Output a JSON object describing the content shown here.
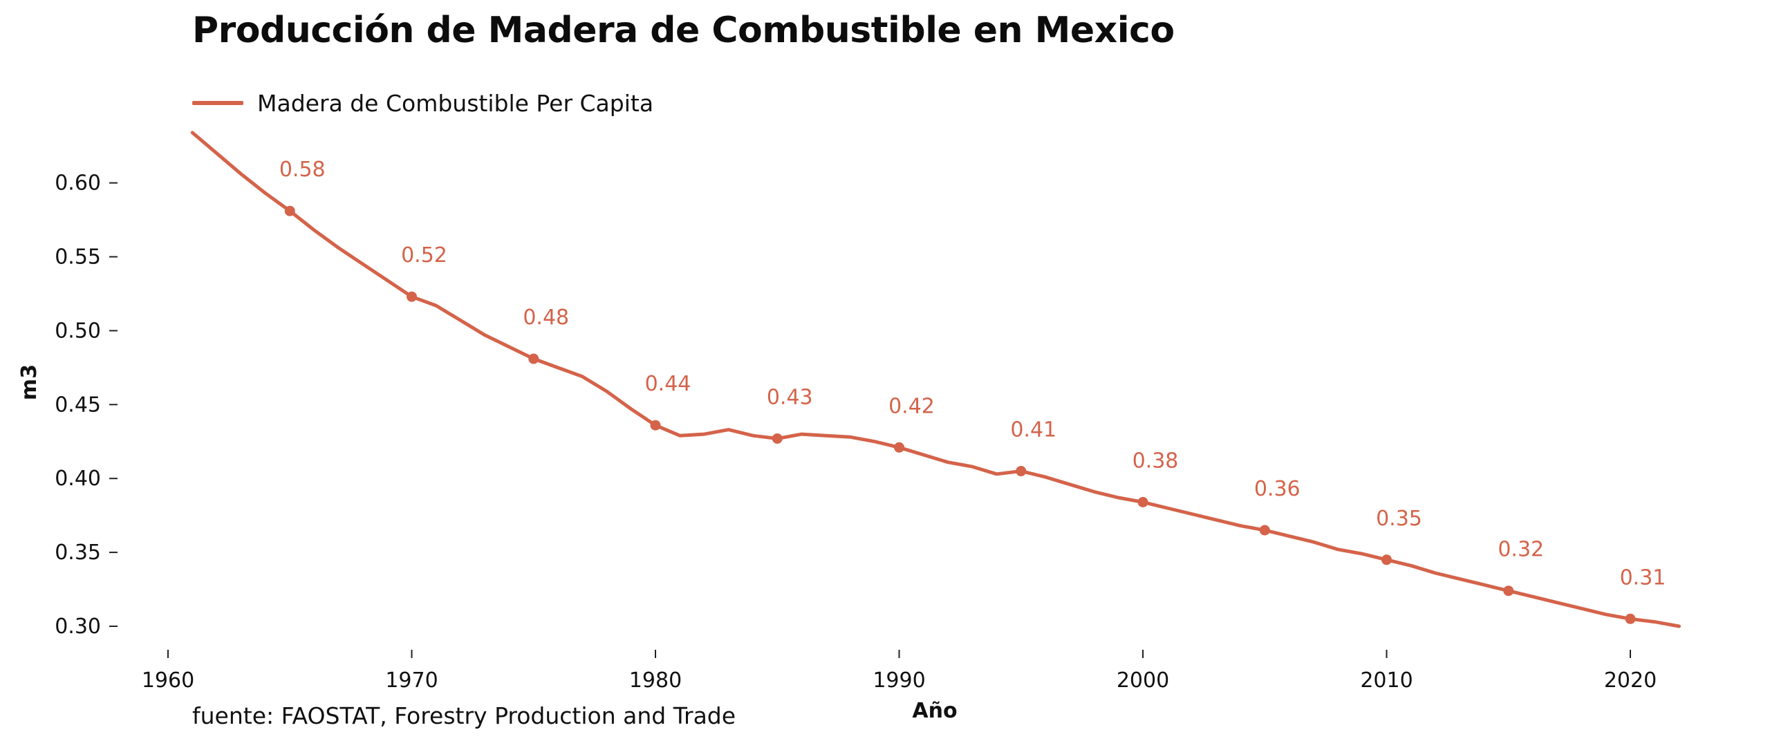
{
  "chart_data": {
    "type": "line",
    "title": "Producción de Madera de Combustible en Mexico",
    "xlabel": "Año",
    "ylabel": "m3",
    "source": "fuente: FAOSTAT, Forestry Production and Trade",
    "xlim": [
      1958,
      2024
    ],
    "ylim": [
      0.285,
      0.645
    ],
    "x_ticks": [
      1960,
      1970,
      1980,
      1990,
      2000,
      2010,
      2020
    ],
    "y_ticks": [
      "0.30",
      "0.35",
      "0.40",
      "0.45",
      "0.50",
      "0.55",
      "0.60"
    ],
    "grid": false,
    "legend_position": "top-left",
    "series": [
      {
        "name": "Madera de Combustible Per Capita",
        "color": "#d4634a",
        "x": [
          1961,
          1962,
          1963,
          1964,
          1965,
          1966,
          1967,
          1968,
          1969,
          1970,
          1971,
          1972,
          1973,
          1974,
          1975,
          1976,
          1977,
          1978,
          1979,
          1980,
          1981,
          1982,
          1983,
          1984,
          1985,
          1986,
          1987,
          1988,
          1989,
          1990,
          1991,
          1992,
          1993,
          1994,
          1995,
          1996,
          1997,
          1998,
          1999,
          2000,
          2001,
          2002,
          2003,
          2004,
          2005,
          2006,
          2007,
          2008,
          2009,
          2010,
          2011,
          2012,
          2013,
          2014,
          2015,
          2016,
          2017,
          2018,
          2019,
          2020,
          2021,
          2022
        ],
        "values": [
          0.634,
          0.62,
          0.606,
          0.593,
          0.581,
          0.568,
          0.556,
          0.545,
          0.534,
          0.523,
          0.517,
          0.507,
          0.497,
          0.489,
          0.481,
          0.475,
          0.469,
          0.459,
          0.447,
          0.436,
          0.429,
          0.43,
          0.433,
          0.429,
          0.427,
          0.43,
          0.429,
          0.428,
          0.425,
          0.421,
          0.416,
          0.411,
          0.408,
          0.403,
          0.405,
          0.401,
          0.396,
          0.391,
          0.387,
          0.384,
          0.38,
          0.376,
          0.372,
          0.368,
          0.365,
          0.361,
          0.357,
          0.352,
          0.349,
          0.345,
          0.341,
          0.336,
          0.332,
          0.328,
          0.324,
          0.32,
          0.316,
          0.312,
          0.308,
          0.305,
          0.303,
          0.3
        ],
        "labeled_points": [
          {
            "x": 1965,
            "y": 0.581,
            "label": "0.58"
          },
          {
            "x": 1970,
            "y": 0.523,
            "label": "0.52"
          },
          {
            "x": 1975,
            "y": 0.481,
            "label": "0.48"
          },
          {
            "x": 1980,
            "y": 0.436,
            "label": "0.44"
          },
          {
            "x": 1985,
            "y": 0.427,
            "label": "0.43"
          },
          {
            "x": 1990,
            "y": 0.421,
            "label": "0.42"
          },
          {
            "x": 1995,
            "y": 0.405,
            "label": "0.41"
          },
          {
            "x": 2000,
            "y": 0.384,
            "label": "0.38"
          },
          {
            "x": 2005,
            "y": 0.365,
            "label": "0.36"
          },
          {
            "x": 2010,
            "y": 0.345,
            "label": "0.35"
          },
          {
            "x": 2015,
            "y": 0.324,
            "label": "0.32"
          },
          {
            "x": 2020,
            "y": 0.305,
            "label": "0.31"
          }
        ]
      }
    ]
  }
}
